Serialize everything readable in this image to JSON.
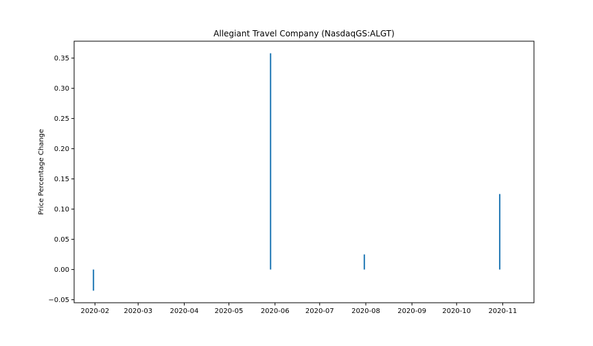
{
  "chart_data": {
    "type": "bar",
    "title": "Allegiant Travel Company (NasdaqGS:ALGT)",
    "xlabel": "",
    "ylabel": "Price Percentage Change",
    "x_axis_type": "date",
    "xlim": [
      "2020-01-18",
      "2020-11-22"
    ],
    "ylim": [
      -0.055,
      0.378
    ],
    "x_ticks": [
      "2020-02",
      "2020-03",
      "2020-04",
      "2020-05",
      "2020-06",
      "2020-07",
      "2020-08",
      "2020-09",
      "2020-10",
      "2020-11"
    ],
    "y_ticks": [
      -0.05,
      0.0,
      0.05,
      0.1,
      0.15,
      0.2,
      0.25,
      0.3,
      0.35
    ],
    "y_tick_labels": [
      "−0.05",
      "0.00",
      "0.05",
      "0.10",
      "0.15",
      "0.20",
      "0.25",
      "0.30",
      "0.35"
    ],
    "x": [
      "2020-01-31",
      "2020-05-29",
      "2020-07-31",
      "2020-10-30"
    ],
    "values": [
      -0.035,
      0.358,
      0.025,
      0.125
    ],
    "bar_color": "#1f77b4",
    "grid": false,
    "legend": "none"
  }
}
